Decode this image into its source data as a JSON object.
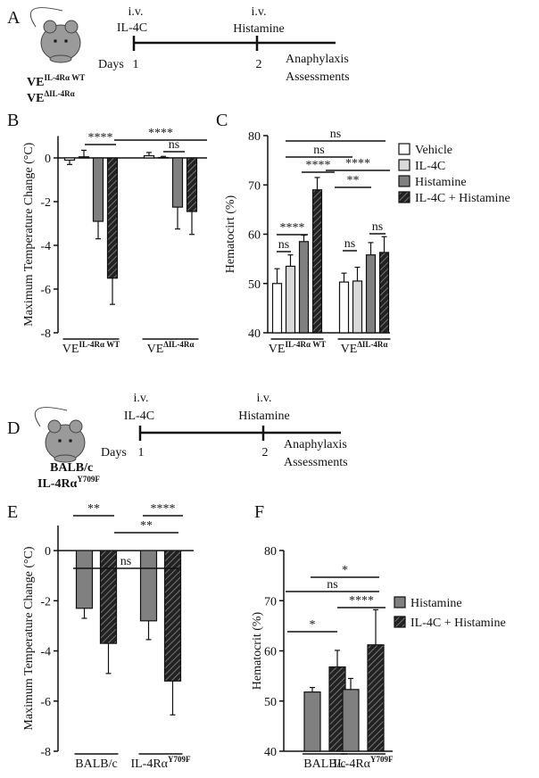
{
  "timeline_a": {
    "panel_label": "A",
    "events": [
      {
        "route": "i.v.",
        "agent": "IL-4C",
        "day": 1
      },
      {
        "route": "i.v.",
        "agent": "Histamine",
        "day": 2
      }
    ],
    "days_label": "Days",
    "outcome": [
      "Anaphylaxis",
      "Assessments"
    ],
    "strains": [
      {
        "base": "VE",
        "sup": "IL-4Rα WT"
      },
      {
        "base": "VE",
        "sup": "ΔIL-4Rα"
      }
    ]
  },
  "timeline_d": {
    "panel_label": "D",
    "events": [
      {
        "route": "i.v.",
        "agent": "IL-4C",
        "day": 1
      },
      {
        "route": "i.v.",
        "agent": "Histamine",
        "day": 2
      }
    ],
    "days_label": "Days",
    "outcome": [
      "Anaphylaxis",
      "Assessments"
    ],
    "strains": [
      {
        "base": "BALB/c"
      },
      {
        "base": "IL-4Rα",
        "sup": "Y709F"
      }
    ]
  },
  "chart_data": [
    {
      "type": "bar",
      "panel_label": "B",
      "y_label": "Maximum Temperature Change (°C)",
      "group_labels": [
        {
          "base": "VE",
          "sup": "IL-4Rα WT"
        },
        {
          "base": "VE",
          "sup": "ΔIL-4Rα"
        }
      ],
      "series": [
        {
          "name": "Vehicle",
          "color": "#ffffff",
          "values": [
            -0.1,
            0.1
          ],
          "errors": [
            0.2,
            0.15
          ]
        },
        {
          "name": "IL-4C",
          "color": "#d9d9d9",
          "values": [
            0.05,
            0.02
          ],
          "errors": [
            0.3,
            0.05
          ]
        },
        {
          "name": "Histamine",
          "color": "#808080",
          "values": [
            -2.9,
            -2.25
          ],
          "errors": [
            0.8,
            1.0
          ]
        },
        {
          "name": "IL-4C + Histamine",
          "color": "#222222",
          "hatch": true,
          "values": [
            -5.5,
            -2.45
          ],
          "errors": [
            1.2,
            1.05
          ]
        }
      ],
      "ylim": [
        -8,
        1
      ],
      "yticks": [
        0,
        -2,
        -4,
        -6,
        -8
      ],
      "annotations": [
        "****",
        "****",
        "ns"
      ]
    },
    {
      "type": "bar",
      "panel_label": "C",
      "y_label": "Hematocirt (%)",
      "group_labels": [
        {
          "base": "VE",
          "sup": "IL-4Rα WT"
        },
        {
          "base": "VE",
          "sup": "ΔIL-4Rα"
        }
      ],
      "series": [
        {
          "name": "Vehicle",
          "color": "#ffffff",
          "values": [
            50,
            50.3
          ],
          "errors": [
            3,
            1.8
          ]
        },
        {
          "name": "IL-4C",
          "color": "#d9d9d9",
          "values": [
            53.5,
            50.5
          ],
          "errors": [
            2.3,
            2.8
          ]
        },
        {
          "name": "Histamine",
          "color": "#808080",
          "values": [
            58.5,
            55.8
          ],
          "errors": [
            1.3,
            2.5
          ]
        },
        {
          "name": "IL-4C + Histamine",
          "color": "#222222",
          "hatch": true,
          "values": [
            69,
            56.3
          ],
          "errors": [
            2.5,
            3.2
          ]
        }
      ],
      "ylim": [
        40,
        80
      ],
      "yticks": [
        40,
        50,
        60,
        70,
        80
      ],
      "legend": "upper right",
      "annotations": [
        "ns",
        "ns",
        "****",
        "****",
        "**",
        "****",
        "ns",
        "ns",
        "ns"
      ]
    },
    {
      "type": "bar",
      "panel_label": "E",
      "y_label": "Maximum Temperature Change (°C)",
      "group_labels": [
        {
          "base": "BALB/c"
        },
        {
          "base": "IL-4Rα",
          "sup": "Y709F"
        }
      ],
      "series": [
        {
          "name": "Histamine",
          "color": "#808080",
          "values": [
            -2.3,
            -2.8
          ],
          "errors": [
            0.4,
            0.75
          ]
        },
        {
          "name": "IL-4C + Histamine",
          "color": "#222222",
          "hatch": true,
          "values": [
            -3.7,
            -5.2
          ],
          "errors": [
            1.2,
            1.35
          ]
        }
      ],
      "ylim": [
        -8,
        1
      ],
      "yticks": [
        0,
        -2,
        -4,
        -6,
        -8
      ],
      "annotations": [
        "**",
        "ns",
        "**",
        "****"
      ]
    },
    {
      "type": "bar",
      "panel_label": "F",
      "y_label": "Hematocrit (%)",
      "group_labels": [
        {
          "base": "BALB/c"
        },
        {
          "base": "IL-4Rα",
          "sup": "Y709F"
        }
      ],
      "series": [
        {
          "name": "Histamine",
          "color": "#808080",
          "values": [
            51.8,
            52.3
          ],
          "errors": [
            0.9,
            2.2
          ]
        },
        {
          "name": "IL-4C + Histamine",
          "color": "#222222",
          "hatch": true,
          "values": [
            56.8,
            61.2
          ],
          "errors": [
            3.3,
            7
          ]
        }
      ],
      "ylim": [
        40,
        80
      ],
      "yticks": [
        40,
        50,
        60,
        70,
        80
      ],
      "legend": "right",
      "annotations": [
        "*",
        "ns",
        "*",
        "****"
      ]
    }
  ]
}
